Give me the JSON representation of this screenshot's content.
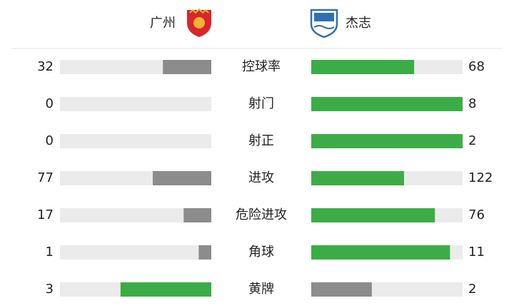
{
  "teams": {
    "home": "广州",
    "away": "杰志"
  },
  "colors": {
    "leading": "#3cad46",
    "trailing": "#8c8c8c",
    "track": "#ebebeb"
  },
  "stats": [
    {
      "label": "控球率",
      "home": 32,
      "away": 68
    },
    {
      "label": "射门",
      "home": 0,
      "away": 8
    },
    {
      "label": "射正",
      "home": 0,
      "away": 2
    },
    {
      "label": "进攻",
      "home": 77,
      "away": 122
    },
    {
      "label": "危险进攻",
      "home": 17,
      "away": 76
    },
    {
      "label": "角球",
      "home": 1,
      "away": 11
    },
    {
      "label": "黄牌",
      "home": 3,
      "away": 2
    }
  ]
}
